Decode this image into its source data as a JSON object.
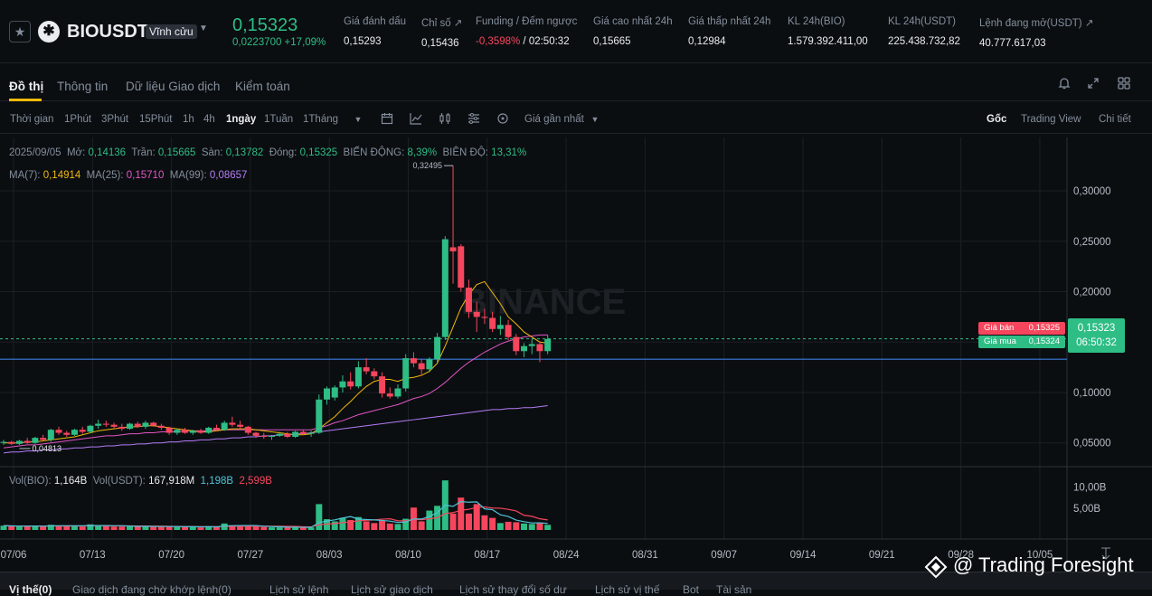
{
  "header": {
    "symbol": "BIOUSDT",
    "contract_type": "Vĩnh cửu",
    "last_price": "0,15323",
    "change": "0,0223700 +17,09%",
    "stats": [
      {
        "label": "Giá đánh dấu",
        "value": "0,15293"
      },
      {
        "label": "Chỉ số ↗",
        "value": "0,15436"
      },
      {
        "label": "Funding / Đếm ngược",
        "value_a": "-0,3598%",
        "value_b": " / 02:50:32"
      },
      {
        "label": "Giá cao nhất 24h",
        "value": "0,15665"
      },
      {
        "label": "Giá thấp nhất 24h",
        "value": "0,12984"
      },
      {
        "label": "KL 24h(BIO)",
        "value": "1.579.392.411,00"
      },
      {
        "label": "KL 24h(USDT)",
        "value": "225.438.732,82"
      },
      {
        "label": "Lệnh đang mở(USDT) ↗",
        "value": "40.777.617,03"
      }
    ]
  },
  "tabs": [
    "Đồ thị",
    "Thông tin",
    "Dữ liệu Giao dịch",
    "Kiểm toán"
  ],
  "toolbar": {
    "intervals": [
      "Thời gian",
      "1Phút",
      "3Phút",
      "15Phút",
      "1h",
      "4h",
      "1ngày",
      "1Tuần",
      "1Tháng"
    ],
    "price_source": "Giá gần nhất",
    "views": [
      "Gốc",
      "Trading View",
      "Chi tiết"
    ]
  },
  "ohlc": {
    "date": "2025/09/05",
    "open_label": "Mở:",
    "open": "0,14136",
    "high_label": "Trần:",
    "high": "0,15665",
    "low_label": "Sàn:",
    "low": "0,13782",
    "close_label": "Đóng:",
    "close": "0,15325",
    "change_label": "BIẾN ĐỘNG:",
    "change": "8,39%",
    "amp_label": "BIÊN ĐỘ:",
    "amp": "13,31%"
  },
  "ma": {
    "ma7_label": "MA(7):",
    "ma7": "0,14914",
    "ma25_label": "MA(25):",
    "ma25": "0,15710",
    "ma99_label": "MA(99):",
    "ma99": "0,08657"
  },
  "volume_info": {
    "vol_bio_label": "Vol(BIO):",
    "vol_bio": "1,164B",
    "vol_usdt_label": "Vol(USDT):",
    "vol_usdt": "167,918M",
    "v1": "1,198B",
    "v2": "2,599B"
  },
  "order_badges": {
    "ask_label": "Giá bán",
    "ask": "0,15325",
    "bid_label": "Giá mua",
    "bid": "0,15324"
  },
  "current_price_box": {
    "price": "0,15323",
    "countdown": "06:50:32"
  },
  "chart_data": {
    "type": "candlestick",
    "y_axis_ticks": [
      "0,30000",
      "0,25000",
      "0,20000",
      "0,15000",
      "0,10000",
      "0,05000"
    ],
    "y_ticks_values": [
      0.3,
      0.25,
      0.2,
      0.15,
      0.1,
      0.05
    ],
    "volume_ticks": [
      "10,00B",
      "5,00B"
    ],
    "x_tick_labels": [
      "07/06",
      "07/13",
      "07/20",
      "07/27",
      "08/03",
      "08/10",
      "08/17",
      "08/24",
      "08/31",
      "09/07",
      "09/14",
      "09/21",
      "09/28",
      "10/05"
    ],
    "max_label": "0,32495",
    "min_label": "0,04813",
    "candles": [
      {
        "o": 0.05,
        "h": 0.053,
        "l": 0.048,
        "c": 0.051,
        "v": 1.0
      },
      {
        "o": 0.051,
        "h": 0.052,
        "l": 0.048,
        "c": 0.049,
        "v": 0.9
      },
      {
        "o": 0.049,
        "h": 0.053,
        "l": 0.048,
        "c": 0.052,
        "v": 0.8
      },
      {
        "o": 0.052,
        "h": 0.055,
        "l": 0.049,
        "c": 0.05,
        "v": 0.9
      },
      {
        "o": 0.05,
        "h": 0.056,
        "l": 0.049,
        "c": 0.055,
        "v": 1.0
      },
      {
        "o": 0.055,
        "h": 0.058,
        "l": 0.052,
        "c": 0.053,
        "v": 0.8
      },
      {
        "o": 0.053,
        "h": 0.064,
        "l": 0.051,
        "c": 0.063,
        "v": 1.2
      },
      {
        "o": 0.063,
        "h": 0.066,
        "l": 0.058,
        "c": 0.06,
        "v": 1.0
      },
      {
        "o": 0.06,
        "h": 0.062,
        "l": 0.056,
        "c": 0.058,
        "v": 0.9
      },
      {
        "o": 0.058,
        "h": 0.064,
        "l": 0.057,
        "c": 0.063,
        "v": 1.0
      },
      {
        "o": 0.063,
        "h": 0.066,
        "l": 0.059,
        "c": 0.061,
        "v": 0.8
      },
      {
        "o": 0.061,
        "h": 0.068,
        "l": 0.06,
        "c": 0.067,
        "v": 1.3
      },
      {
        "o": 0.067,
        "h": 0.073,
        "l": 0.064,
        "c": 0.069,
        "v": 1.1
      },
      {
        "o": 0.069,
        "h": 0.072,
        "l": 0.066,
        "c": 0.068,
        "v": 0.9
      },
      {
        "o": 0.068,
        "h": 0.07,
        "l": 0.064,
        "c": 0.066,
        "v": 0.8
      },
      {
        "o": 0.066,
        "h": 0.069,
        "l": 0.062,
        "c": 0.064,
        "v": 0.8
      },
      {
        "o": 0.064,
        "h": 0.07,
        "l": 0.063,
        "c": 0.069,
        "v": 0.9
      },
      {
        "o": 0.069,
        "h": 0.071,
        "l": 0.065,
        "c": 0.066,
        "v": 0.8
      },
      {
        "o": 0.066,
        "h": 0.072,
        "l": 0.064,
        "c": 0.07,
        "v": 0.9
      },
      {
        "o": 0.07,
        "h": 0.071,
        "l": 0.066,
        "c": 0.067,
        "v": 0.7
      },
      {
        "o": 0.067,
        "h": 0.069,
        "l": 0.063,
        "c": 0.065,
        "v": 0.7
      },
      {
        "o": 0.065,
        "h": 0.066,
        "l": 0.058,
        "c": 0.06,
        "v": 0.9
      },
      {
        "o": 0.06,
        "h": 0.064,
        "l": 0.058,
        "c": 0.063,
        "v": 0.8
      },
      {
        "o": 0.063,
        "h": 0.065,
        "l": 0.059,
        "c": 0.06,
        "v": 0.7
      },
      {
        "o": 0.06,
        "h": 0.063,
        "l": 0.058,
        "c": 0.062,
        "v": 0.7
      },
      {
        "o": 0.062,
        "h": 0.064,
        "l": 0.059,
        "c": 0.06,
        "v": 0.6
      },
      {
        "o": 0.06,
        "h": 0.066,
        "l": 0.059,
        "c": 0.065,
        "v": 0.9
      },
      {
        "o": 0.065,
        "h": 0.068,
        "l": 0.062,
        "c": 0.063,
        "v": 0.8
      },
      {
        "o": 0.063,
        "h": 0.072,
        "l": 0.062,
        "c": 0.07,
        "v": 1.5
      },
      {
        "o": 0.07,
        "h": 0.076,
        "l": 0.066,
        "c": 0.068,
        "v": 1.1
      },
      {
        "o": 0.068,
        "h": 0.072,
        "l": 0.064,
        "c": 0.066,
        "v": 0.8
      },
      {
        "o": 0.066,
        "h": 0.067,
        "l": 0.058,
        "c": 0.06,
        "v": 1.0
      },
      {
        "o": 0.06,
        "h": 0.061,
        "l": 0.055,
        "c": 0.057,
        "v": 0.8
      },
      {
        "o": 0.057,
        "h": 0.06,
        "l": 0.054,
        "c": 0.056,
        "v": 0.7
      },
      {
        "o": 0.056,
        "h": 0.058,
        "l": 0.053,
        "c": 0.057,
        "v": 0.6
      },
      {
        "o": 0.057,
        "h": 0.061,
        "l": 0.056,
        "c": 0.059,
        "v": 0.6
      },
      {
        "o": 0.059,
        "h": 0.061,
        "l": 0.055,
        "c": 0.056,
        "v": 0.6
      },
      {
        "o": 0.056,
        "h": 0.062,
        "l": 0.055,
        "c": 0.061,
        "v": 0.7
      },
      {
        "o": 0.061,
        "h": 0.063,
        "l": 0.058,
        "c": 0.059,
        "v": 0.6
      },
      {
        "o": 0.059,
        "h": 0.062,
        "l": 0.056,
        "c": 0.06,
        "v": 0.6
      },
      {
        "o": 0.06,
        "h": 0.098,
        "l": 0.059,
        "c": 0.093,
        "v": 6.0
      },
      {
        "o": 0.093,
        "h": 0.106,
        "l": 0.088,
        "c": 0.104,
        "v": 2.5
      },
      {
        "o": 0.095,
        "h": 0.107,
        "l": 0.092,
        "c": 0.105,
        "v": 2.0
      },
      {
        "o": 0.105,
        "h": 0.117,
        "l": 0.1,
        "c": 0.111,
        "v": 2.8
      },
      {
        "o": 0.111,
        "h": 0.12,
        "l": 0.103,
        "c": 0.106,
        "v": 2.3
      },
      {
        "o": 0.106,
        "h": 0.131,
        "l": 0.104,
        "c": 0.125,
        "v": 3.0
      },
      {
        "o": 0.125,
        "h": 0.134,
        "l": 0.118,
        "c": 0.121,
        "v": 2.0
      },
      {
        "o": 0.121,
        "h": 0.124,
        "l": 0.113,
        "c": 0.116,
        "v": 1.6
      },
      {
        "o": 0.116,
        "h": 0.12,
        "l": 0.095,
        "c": 0.099,
        "v": 2.2
      },
      {
        "o": 0.099,
        "h": 0.105,
        "l": 0.094,
        "c": 0.096,
        "v": 1.5
      },
      {
        "o": 0.096,
        "h": 0.108,
        "l": 0.094,
        "c": 0.104,
        "v": 1.4
      },
      {
        "o": 0.104,
        "h": 0.138,
        "l": 0.101,
        "c": 0.134,
        "v": 2.6
      },
      {
        "o": 0.134,
        "h": 0.14,
        "l": 0.125,
        "c": 0.129,
        "v": 5.2
      },
      {
        "o": 0.129,
        "h": 0.133,
        "l": 0.118,
        "c": 0.123,
        "v": 2.0
      },
      {
        "o": 0.123,
        "h": 0.135,
        "l": 0.12,
        "c": 0.133,
        "v": 4.5
      },
      {
        "o": 0.133,
        "h": 0.159,
        "l": 0.128,
        "c": 0.155,
        "v": 5.6
      },
      {
        "o": 0.155,
        "h": 0.255,
        "l": 0.152,
        "c": 0.252,
        "v": 11.5
      },
      {
        "o": 0.244,
        "h": 0.325,
        "l": 0.208,
        "c": 0.24,
        "v": 3.8
      },
      {
        "o": 0.245,
        "h": 0.247,
        "l": 0.2,
        "c": 0.204,
        "v": 7.5
      },
      {
        "o": 0.204,
        "h": 0.212,
        "l": 0.174,
        "c": 0.18,
        "v": 3.8
      },
      {
        "o": 0.18,
        "h": 0.19,
        "l": 0.16,
        "c": 0.175,
        "v": 6.0
      },
      {
        "o": 0.175,
        "h": 0.183,
        "l": 0.168,
        "c": 0.174,
        "v": 3.4
      },
      {
        "o": 0.174,
        "h": 0.18,
        "l": 0.16,
        "c": 0.163,
        "v": 2.8
      },
      {
        "o": 0.163,
        "h": 0.176,
        "l": 0.157,
        "c": 0.167,
        "v": 1.6
      },
      {
        "o": 0.167,
        "h": 0.172,
        "l": 0.152,
        "c": 0.155,
        "v": 1.9
      },
      {
        "o": 0.155,
        "h": 0.158,
        "l": 0.137,
        "c": 0.141,
        "v": 1.8
      },
      {
        "o": 0.141,
        "h": 0.149,
        "l": 0.135,
        "c": 0.146,
        "v": 1.5
      },
      {
        "o": 0.146,
        "h": 0.153,
        "l": 0.138,
        "c": 0.148,
        "v": 1.4
      },
      {
        "o": 0.148,
        "h": 0.151,
        "l": 0.13,
        "c": 0.141,
        "v": 1.7
      },
      {
        "o": 0.141,
        "h": 0.157,
        "l": 0.138,
        "c": 0.153,
        "v": 1.2
      }
    ],
    "ma7": [
      0.05,
      0.05,
      0.05,
      0.051,
      0.051,
      0.052,
      0.053,
      0.054,
      0.055,
      0.056,
      0.058,
      0.06,
      0.062,
      0.063,
      0.064,
      0.065,
      0.066,
      0.066,
      0.067,
      0.067,
      0.066,
      0.065,
      0.064,
      0.063,
      0.062,
      0.061,
      0.061,
      0.062,
      0.063,
      0.064,
      0.064,
      0.064,
      0.063,
      0.062,
      0.061,
      0.06,
      0.059,
      0.058,
      0.058,
      0.059,
      0.064,
      0.07,
      0.076,
      0.084,
      0.091,
      0.099,
      0.106,
      0.111,
      0.113,
      0.113,
      0.111,
      0.114,
      0.115,
      0.117,
      0.121,
      0.129,
      0.146,
      0.165,
      0.184,
      0.197,
      0.207,
      0.21,
      0.199,
      0.188,
      0.175,
      0.168,
      0.16,
      0.155,
      0.15,
      0.149
    ],
    "ma25": [
      0.045,
      0.046,
      0.047,
      0.048,
      0.048,
      0.049,
      0.05,
      0.051,
      0.052,
      0.053,
      0.054,
      0.055,
      0.056,
      0.057,
      0.057,
      0.058,
      0.059,
      0.059,
      0.06,
      0.06,
      0.061,
      0.061,
      0.061,
      0.062,
      0.062,
      0.062,
      0.062,
      0.063,
      0.063,
      0.063,
      0.063,
      0.063,
      0.063,
      0.063,
      0.063,
      0.063,
      0.063,
      0.063,
      0.063,
      0.063,
      0.065,
      0.067,
      0.07,
      0.072,
      0.075,
      0.078,
      0.08,
      0.082,
      0.084,
      0.086,
      0.088,
      0.091,
      0.094,
      0.096,
      0.099,
      0.104,
      0.11,
      0.117,
      0.124,
      0.13,
      0.135,
      0.14,
      0.144,
      0.148,
      0.151,
      0.153,
      0.155,
      0.156,
      0.157,
      0.157
    ],
    "ma99": [
      0.04,
      0.041,
      0.041,
      0.042,
      0.042,
      0.043,
      0.043,
      0.044,
      0.044,
      0.045,
      0.045,
      0.046,
      0.046,
      0.047,
      0.047,
      0.048,
      0.048,
      0.049,
      0.049,
      0.05,
      0.05,
      0.051,
      0.051,
      0.052,
      0.052,
      0.053,
      0.053,
      0.054,
      0.054,
      0.055,
      0.055,
      0.056,
      0.056,
      0.057,
      0.057,
      0.058,
      0.058,
      0.059,
      0.059,
      0.06,
      0.061,
      0.062,
      0.063,
      0.064,
      0.065,
      0.066,
      0.067,
      0.068,
      0.069,
      0.07,
      0.071,
      0.072,
      0.073,
      0.074,
      0.075,
      0.076,
      0.077,
      0.078,
      0.079,
      0.08,
      0.081,
      0.082,
      0.083,
      0.083,
      0.084,
      0.084,
      0.085,
      0.085,
      0.086,
      0.087
    ],
    "current_price": 0.15323,
    "blue_line": 0.133
  },
  "bottom_tabs": [
    "Vị thế(0)",
    "Giao dịch đang chờ khớp lệnh(0)",
    "Lịch sử lệnh",
    "Lịch sử giao dịch",
    "Lịch sử thay đổi số dư",
    "Lịch sử vị thế",
    "Bot",
    "Tài sản"
  ],
  "watermark": "@ Trading Foresight",
  "colors": {
    "up": "#2ebd85",
    "down": "#f6465d",
    "ma7": "#f0b90b",
    "ma25": "#e255c4",
    "ma99": "#b47cf6",
    "bg": "#0b0e11"
  }
}
